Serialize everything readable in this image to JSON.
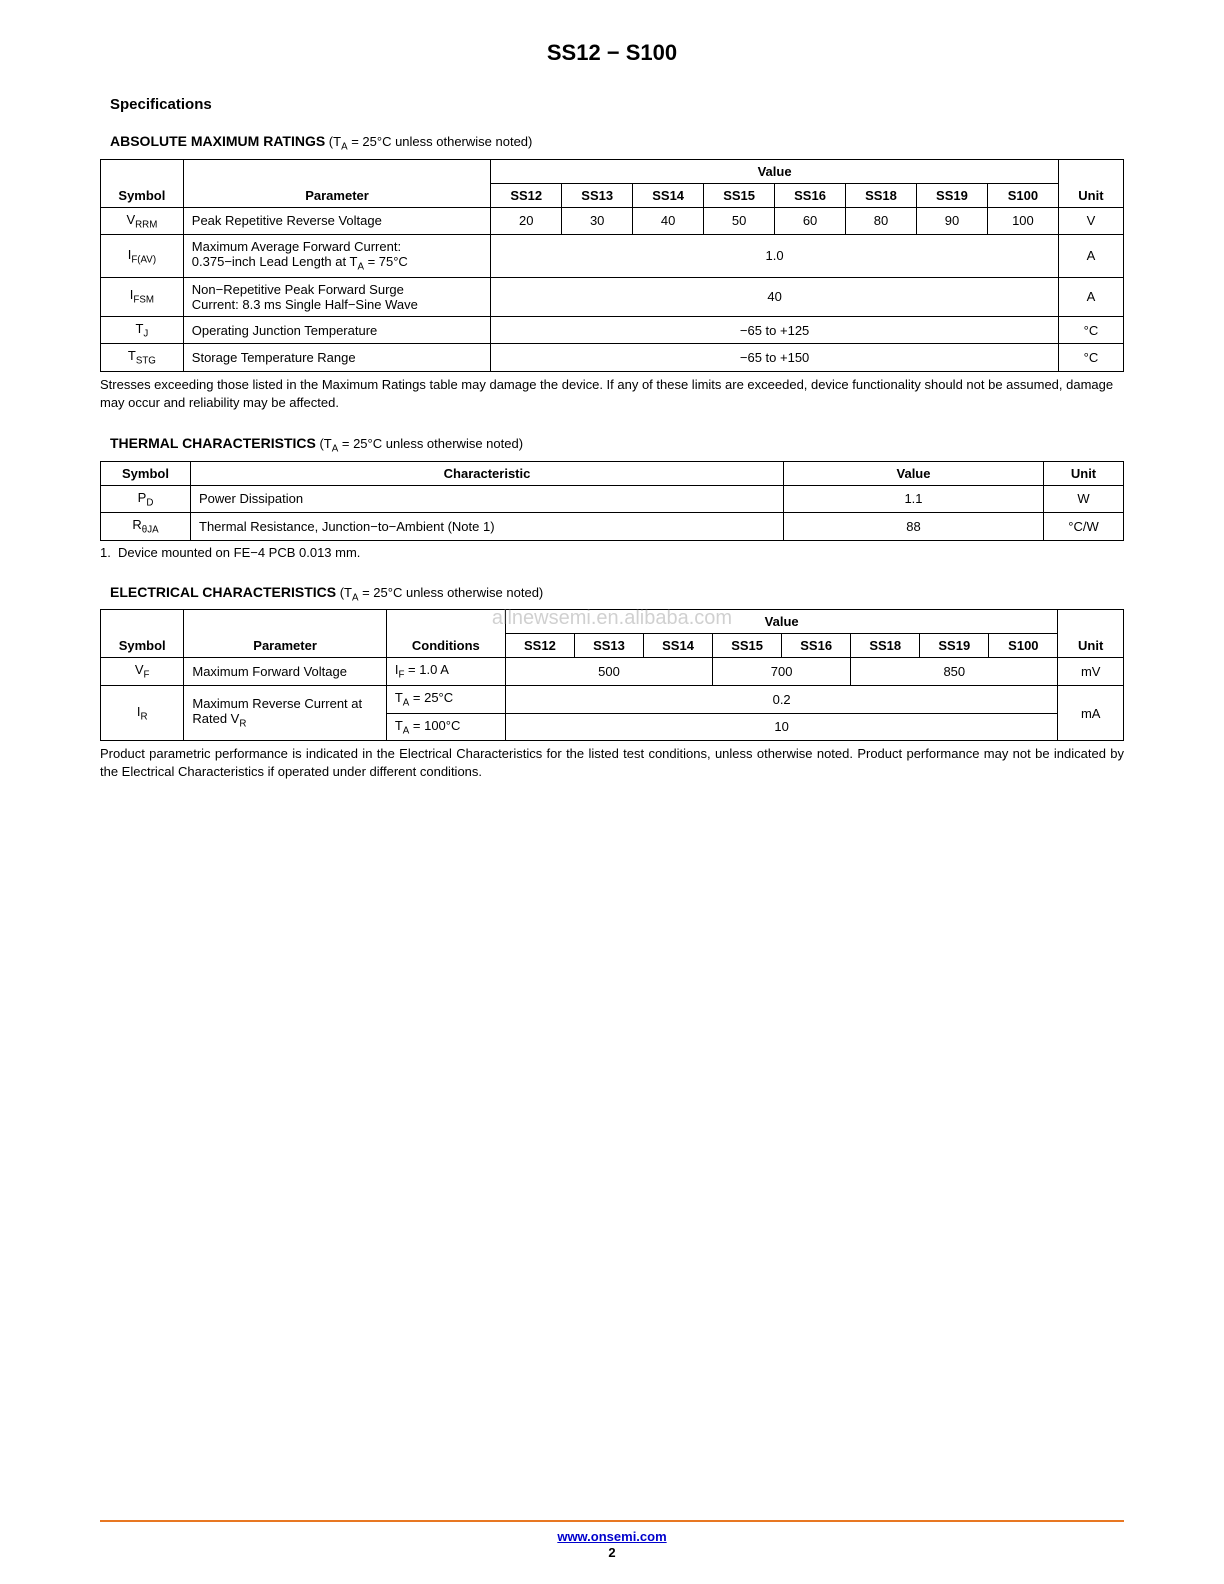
{
  "doc_title": "SS12 − S100",
  "section_heading": "Specifications",
  "footer": {
    "url": "www.onsemi.com",
    "page": "2"
  },
  "watermark": "allnewsemi.en.alibaba.com",
  "colors": {
    "footer_rule": "#e87722",
    "link": "#0000cc",
    "text": "#000000",
    "bg": "#ffffff"
  },
  "amr": {
    "title_bold": "ABSOLUTE MAXIMUM RATINGS",
    "title_note_prefix": " (T",
    "title_note_sub": "A",
    "title_note_suffix": " = 25°C unless otherwise noted)",
    "head": {
      "symbol": "Symbol",
      "parameter": "Parameter",
      "value": "Value",
      "unit": "Unit",
      "parts": [
        "SS12",
        "SS13",
        "SS14",
        "SS15",
        "SS16",
        "SS18",
        "SS19",
        "S100"
      ]
    },
    "rows": [
      {
        "sym_html": "V<sub>RRM</sub>",
        "param": "Peak Repetitive Reverse Voltage",
        "vals": [
          "20",
          "30",
          "40",
          "50",
          "60",
          "80",
          "90",
          "100"
        ],
        "unit": "V"
      },
      {
        "sym_html": "I<sub>F(AV)</sub>",
        "param_html": "Maximum Average Forward Current:<br>0.375−inch Lead Length at T<sub>A</sub> = 75°C",
        "span_val": "1.0",
        "unit": "A"
      },
      {
        "sym_html": "I<sub>FSM</sub>",
        "param_html": "Non−Repetitive Peak Forward Surge<br>Current: 8.3 ms Single Half−Sine Wave",
        "span_val": "40",
        "unit": "A"
      },
      {
        "sym_html": "T<sub>J</sub>",
        "param": "Operating Junction Temperature",
        "span_val": "−65 to +125",
        "unit": "°C"
      },
      {
        "sym_html": "T<sub>STG</sub>",
        "param": "Storage Temperature Range",
        "span_val": "−65 to +150",
        "unit": "°C"
      }
    ],
    "footnote": "Stresses exceeding those listed in the Maximum Ratings table may damage the device. If any of these limits are exceeded, device functionality should not be assumed, damage may occur and reliability may be affected."
  },
  "thermal": {
    "title_bold": "THERMAL CHARACTERISTICS",
    "title_note_prefix": " (T",
    "title_note_sub": "A",
    "title_note_suffix": " = 25°C unless otherwise noted)",
    "head": {
      "symbol": "Symbol",
      "characteristic": "Characteristic",
      "value": "Value",
      "unit": "Unit"
    },
    "rows": [
      {
        "sym_html": "P<sub>D</sub>",
        "char": "Power Dissipation",
        "val": "1.1",
        "unit": "W"
      },
      {
        "sym_html": "R<sub>θJA</sub>",
        "char": "Thermal Resistance, Junction−to−Ambient (Note 1)",
        "val": "88",
        "unit": "°C/W"
      }
    ],
    "footnote_num": "1.",
    "footnote_text": "Device mounted on FE−4 PCB 0.013 mm."
  },
  "elec": {
    "title_bold": "ELECTRICAL CHARACTERISTICS",
    "title_note_prefix": " (T",
    "title_note_sub": "A",
    "title_note_suffix": " = 25°C unless otherwise noted)",
    "head": {
      "symbol": "Symbol",
      "parameter": "Parameter",
      "conditions": "Conditions",
      "value": "Value",
      "unit": "Unit",
      "parts": [
        "SS12",
        "SS13",
        "SS14",
        "SS15",
        "SS16",
        "SS18",
        "SS19",
        "S100"
      ]
    },
    "row_vf": {
      "sym_html": "V<sub>F</sub>",
      "param": "Maximum Forward Voltage",
      "cond_html": "I<sub>F</sub> = 1.0 A",
      "groups": [
        {
          "span": 3,
          "val": "500"
        },
        {
          "span": 2,
          "val": "700"
        },
        {
          "span": 3,
          "val": "850"
        }
      ],
      "unit": "mV"
    },
    "row_ir": {
      "sym_html": "I<sub>R</sub>",
      "param_html": "Maximum Reverse Current at Rated V<sub>R</sub>",
      "conds": [
        {
          "cond_html": "T<sub>A</sub> = 25°C",
          "val": "0.2"
        },
        {
          "cond_html": "T<sub>A</sub> = 100°C",
          "val": "10"
        }
      ],
      "unit": "mA"
    },
    "footnote": "Product parametric performance is indicated in the Electrical Characteristics for the listed test conditions, unless otherwise noted. Product performance may not be indicated by the Electrical Characteristics if operated under different conditions."
  }
}
